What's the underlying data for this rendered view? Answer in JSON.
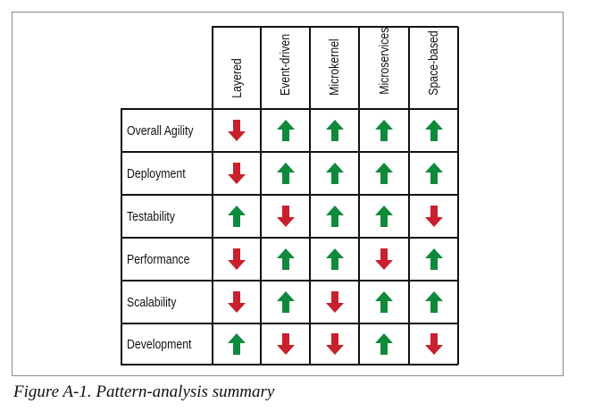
{
  "table": {
    "columns": [
      "Layered",
      "Event-driven",
      "Microkernel",
      "Microservices",
      "Space-based"
    ],
    "rows": [
      {
        "label": "Overall Agility",
        "values": [
          "down",
          "up",
          "up",
          "up",
          "up"
        ]
      },
      {
        "label": "Deployment",
        "values": [
          "down",
          "up",
          "up",
          "up",
          "up"
        ]
      },
      {
        "label": "Testability",
        "values": [
          "up",
          "down",
          "up",
          "up",
          "down"
        ]
      },
      {
        "label": "Performance",
        "values": [
          "down",
          "up",
          "up",
          "down",
          "up"
        ]
      },
      {
        "label": "Scalability",
        "values": [
          "down",
          "up",
          "down",
          "up",
          "up"
        ]
      },
      {
        "label": "Development",
        "values": [
          "up",
          "down",
          "down",
          "up",
          "down"
        ]
      }
    ],
    "colors": {
      "up": "#0f8a3c",
      "down": "#c8202c",
      "grid": "#111111"
    },
    "icons": {
      "up": "arrow-up-icon",
      "down": "arrow-down-icon"
    }
  },
  "caption": "Figure A-1. Pattern-analysis summary"
}
